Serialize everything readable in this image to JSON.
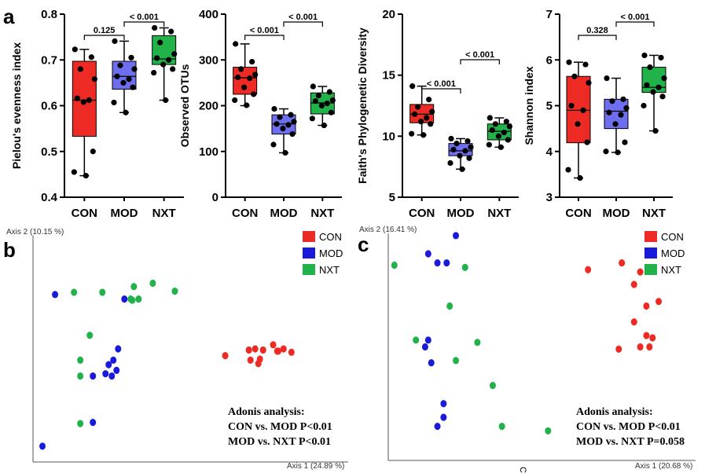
{
  "panel_labels": {
    "a": "a",
    "b": "b",
    "c": "c"
  },
  "chart_data": [
    {
      "type": "box",
      "ylabel": "Pielou's evenness index",
      "categories": [
        "CON",
        "MOD",
        "NXT"
      ],
      "ylim": [
        0.4,
        0.8
      ],
      "yticks": [
        "0.4",
        "0.5",
        "0.6",
        "0.7",
        "0.8"
      ],
      "colors": [
        "#ee2a24",
        "#6e6ef0",
        "#21b24a"
      ],
      "boxes": [
        {
          "min": 0.447,
          "q1": 0.533,
          "median": 0.612,
          "q3": 0.697,
          "max": 0.723
        },
        {
          "min": 0.585,
          "q1": 0.636,
          "median": 0.664,
          "q3": 0.697,
          "max": 0.741
        },
        {
          "min": 0.612,
          "q1": 0.69,
          "median": 0.702,
          "q3": 0.753,
          "max": 0.77
        }
      ],
      "points": [
        [
          0.723,
          0.706,
          0.68,
          0.658,
          0.616,
          0.612,
          0.608,
          0.5,
          0.455,
          0.447
        ],
        [
          0.741,
          0.705,
          0.688,
          0.68,
          0.664,
          0.658,
          0.65,
          0.64,
          0.607,
          0.585
        ],
        [
          0.77,
          0.762,
          0.738,
          0.713,
          0.704,
          0.7,
          0.69,
          0.68,
          0.672,
          0.612
        ]
      ],
      "comparisons": [
        {
          "from": 0,
          "to": 1,
          "label": "0.125"
        },
        {
          "from": 1,
          "to": 2,
          "label": "< 0.001"
        }
      ]
    },
    {
      "type": "box",
      "ylabel": "Observed OTUs",
      "categories": [
        "CON",
        "MOD",
        "NXT"
      ],
      "ylim": [
        0,
        400
      ],
      "yticks": [
        "0",
        "100",
        "200",
        "300",
        "400"
      ],
      "colors": [
        "#ee2a24",
        "#6e6ef0",
        "#21b24a"
      ],
      "boxes": [
        {
          "min": 200,
          "q1": 225,
          "median": 261,
          "q3": 284,
          "max": 335
        },
        {
          "min": 97,
          "q1": 138,
          "median": 160,
          "q3": 180,
          "max": 193
        },
        {
          "min": 157,
          "q1": 182,
          "median": 206,
          "q3": 228,
          "max": 242
        }
      ],
      "points": [
        [
          335,
          296,
          280,
          268,
          262,
          260,
          240,
          225,
          212,
          201
        ],
        [
          193,
          180,
          175,
          165,
          160,
          158,
          150,
          138,
          115,
          97
        ],
        [
          242,
          230,
          222,
          212,
          210,
          205,
          200,
          185,
          172,
          157
        ]
      ],
      "comparisons": [
        {
          "from": 0,
          "to": 1,
          "label": "< 0.001"
        },
        {
          "from": 1,
          "to": 2,
          "label": "< 0.001"
        }
      ]
    },
    {
      "type": "box",
      "ylabel": "Faith's Phylogenetic Diversity",
      "categories": [
        "CON",
        "MOD",
        "NXT"
      ],
      "ylim": [
        5,
        20
      ],
      "yticks": [
        "5",
        "10",
        "15",
        "20"
      ],
      "colors": [
        "#ee2a24",
        "#6e6ef0",
        "#21b24a"
      ],
      "boxes": [
        {
          "min": 10.1,
          "q1": 11.1,
          "median": 11.8,
          "q3": 12.6,
          "max": 14.1
        },
        {
          "min": 7.3,
          "q1": 8.4,
          "median": 8.8,
          "q3": 9.4,
          "max": 9.8
        },
        {
          "min": 9.1,
          "q1": 9.7,
          "median": 10.4,
          "q3": 11.0,
          "max": 11.5
        }
      ],
      "points": [
        [
          14.1,
          13.0,
          12.4,
          12.0,
          11.8,
          11.5,
          11.2,
          11.0,
          10.2,
          10.1
        ],
        [
          9.8,
          9.6,
          9.4,
          9.1,
          8.9,
          8.8,
          8.4,
          8.2,
          7.8,
          7.3
        ],
        [
          11.5,
          11.2,
          11.0,
          10.8,
          10.5,
          10.3,
          10.0,
          9.7,
          9.3,
          9.1
        ]
      ],
      "comparisons": [
        {
          "from": 0,
          "to": 1,
          "label": "< 0.001"
        },
        {
          "from": 1,
          "to": 2,
          "label": "< 0.001"
        }
      ]
    },
    {
      "type": "box",
      "ylabel": "Shannon index",
      "categories": [
        "CON",
        "MOD",
        "NXT"
      ],
      "ylim": [
        3,
        7
      ],
      "yticks": [
        "3",
        "4",
        "5",
        "6",
        "7"
      ],
      "colors": [
        "#ee2a24",
        "#6e6ef0",
        "#21b24a"
      ],
      "boxes": [
        {
          "min": 3.42,
          "q1": 4.19,
          "median": 4.9,
          "q3": 5.64,
          "max": 5.95
        },
        {
          "min": 3.98,
          "q1": 4.5,
          "median": 4.88,
          "q3": 5.14,
          "max": 5.6
        },
        {
          "min": 4.45,
          "q1": 5.29,
          "median": 5.4,
          "q3": 5.84,
          "max": 6.1
        }
      ],
      "points": [
        [
          5.95,
          5.9,
          5.64,
          5.5,
          5.0,
          4.9,
          4.6,
          4.2,
          3.6,
          3.42
        ],
        [
          5.6,
          5.14,
          5.1,
          4.95,
          4.85,
          4.8,
          4.6,
          4.2,
          4.0,
          3.98
        ],
        [
          6.1,
          6.05,
          5.84,
          5.6,
          5.45,
          5.4,
          5.3,
          5.2,
          5.0,
          4.45
        ]
      ],
      "comparisons": [
        {
          "from": 0,
          "to": 1,
          "label": "0.328"
        },
        {
          "from": 1,
          "to": 2,
          "label": "< 0.001"
        }
      ]
    },
    {
      "type": "scatter",
      "xlabel": "Axis 1 (24.89 %)",
      "ylabel": "Axis 2 (10.15 %)",
      "xlim": [
        0,
        1
      ],
      "ylim": [
        0,
        1
      ],
      "legend": [
        "CON",
        "MOD",
        "NXT"
      ],
      "legend_position": "top-right",
      "colors": [
        "#ee2a24",
        "#1a1adb",
        "#21b24a"
      ],
      "series": [
        {
          "name": "CON",
          "points": [
            [
              0.61,
              0.47
            ],
            [
              0.685,
              0.495
            ],
            [
              0.705,
              0.5
            ],
            [
              0.73,
              0.495
            ],
            [
              0.762,
              0.518
            ],
            [
              0.775,
              0.49
            ],
            [
              0.778,
              0.49
            ],
            [
              0.82,
              0.485
            ],
            [
              0.72,
              0.455
            ],
            [
              0.715,
              0.435
            ],
            [
              0.69,
              0.45
            ],
            [
              0.795,
              0.5
            ]
          ]
        },
        {
          "name": "MOD",
          "points": [
            [
              0.07,
              0.74
            ],
            [
              0.29,
              0.72
            ],
            [
              0.27,
              0.5
            ],
            [
              0.255,
              0.45
            ],
            [
              0.24,
              0.43
            ],
            [
              0.23,
              0.39
            ],
            [
              0.265,
              0.405
            ],
            [
              0.25,
              0.38
            ],
            [
              0.19,
              0.38
            ],
            [
              0.19,
              0.175
            ],
            [
              0.03,
              0.07
            ]
          ]
        },
        {
          "name": "NXT",
          "points": [
            [
              0.13,
              0.75
            ],
            [
              0.22,
              0.75
            ],
            [
              0.32,
              0.775
            ],
            [
              0.38,
              0.79
            ],
            [
              0.45,
              0.755
            ],
            [
              0.31,
              0.72
            ],
            [
              0.315,
              0.715
            ],
            [
              0.335,
              0.72
            ],
            [
              0.18,
              0.56
            ],
            [
              0.15,
              0.45
            ],
            [
              0.15,
              0.38
            ],
            [
              0.15,
              0.17
            ]
          ]
        }
      ],
      "annotation": [
        "Adonis analysis:",
        "CON vs. MOD P<0.01",
        "MOD vs. NXT P<0.01"
      ]
    },
    {
      "type": "scatter",
      "xlabel": "Axis 1 (20.68 %)",
      "ylabel": "Axis 2 (16.41 %)",
      "xlim": [
        0,
        1
      ],
      "ylim": [
        0,
        1
      ],
      "legend": [
        "CON",
        "MOD",
        "NXT"
      ],
      "legend_position": "top-right",
      "colors": [
        "#ee2a24",
        "#1a1adb",
        "#21b24a"
      ],
      "series": [
        {
          "name": "CON",
          "points": [
            [
              0.65,
              0.84
            ],
            [
              0.76,
              0.87
            ],
            [
              0.82,
              0.83
            ],
            [
              0.8,
              0.775
            ],
            [
              0.88,
              0.7
            ],
            [
              0.84,
              0.68
            ],
            [
              0.8,
              0.61
            ],
            [
              0.84,
              0.55
            ],
            [
              0.86,
              0.54
            ],
            [
              0.82,
              0.5
            ],
            [
              0.85,
              0.5
            ],
            [
              0.75,
              0.49
            ]
          ]
        },
        {
          "name": "MOD",
          "points": [
            [
              0.22,
              0.99
            ],
            [
              0.13,
              0.91
            ],
            [
              0.16,
              0.87
            ],
            [
              0.19,
              0.87
            ],
            [
              0.13,
              0.53
            ],
            [
              0.12,
              0.5
            ],
            [
              0.14,
              0.43
            ],
            [
              0.18,
              0.25
            ],
            [
              0.18,
              0.19
            ],
            [
              0.16,
              0.15
            ]
          ]
        },
        {
          "name": "NXT",
          "points": [
            [
              0.02,
              0.86
            ],
            [
              0.25,
              0.85
            ],
            [
              0.2,
              0.68
            ],
            [
              0.09,
              0.53
            ],
            [
              0.29,
              0.52
            ],
            [
              0.22,
              0.44
            ],
            [
              0.34,
              0.33
            ],
            [
              0.37,
              0.15
            ],
            [
              0.52,
              0.13
            ]
          ]
        }
      ],
      "annotation": [
        "Adonis analysis:",
        "CON vs. MOD P<0.01",
        "MOD vs. NXT P=0.058"
      ]
    }
  ],
  "stray_glyph": "C"
}
